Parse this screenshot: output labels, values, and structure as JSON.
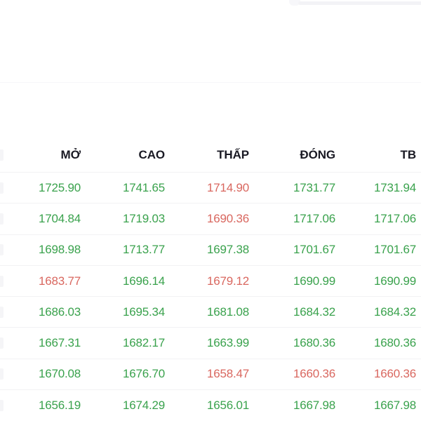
{
  "colors": {
    "up": "#3aa24d",
    "down": "#d9675f",
    "header_text": "#1a1a24",
    "row_separator": "#f2f2f4",
    "background": "#ffffff"
  },
  "table": {
    "headers": [
      "MỞ",
      "CAO",
      "THẤP",
      "ĐÓNG",
      "TB"
    ],
    "rows": [
      {
        "values": [
          "1725.90",
          "1741.65",
          "1714.90",
          "1731.77",
          "1731.94"
        ],
        "trend": [
          "up",
          "up",
          "down",
          "up",
          "up"
        ]
      },
      {
        "values": [
          "1704.84",
          "1719.03",
          "1690.36",
          "1717.06",
          "1717.06"
        ],
        "trend": [
          "up",
          "up",
          "down",
          "up",
          "up"
        ]
      },
      {
        "values": [
          "1698.98",
          "1713.77",
          "1697.38",
          "1701.67",
          "1701.67"
        ],
        "trend": [
          "up",
          "up",
          "up",
          "up",
          "up"
        ]
      },
      {
        "values": [
          "1683.77",
          "1696.14",
          "1679.12",
          "1690.99",
          "1690.99"
        ],
        "trend": [
          "down",
          "up",
          "down",
          "up",
          "up"
        ]
      },
      {
        "values": [
          "1686.03",
          "1695.34",
          "1681.08",
          "1684.32",
          "1684.32"
        ],
        "trend": [
          "up",
          "up",
          "up",
          "up",
          "up"
        ]
      },
      {
        "values": [
          "1667.31",
          "1682.17",
          "1663.99",
          "1680.36",
          "1680.36"
        ],
        "trend": [
          "up",
          "up",
          "up",
          "up",
          "up"
        ]
      },
      {
        "values": [
          "1670.08",
          "1676.70",
          "1658.47",
          "1660.36",
          "1660.36"
        ],
        "trend": [
          "up",
          "up",
          "down",
          "down",
          "down"
        ]
      },
      {
        "values": [
          "1656.19",
          "1674.29",
          "1656.01",
          "1667.98",
          "1667.98"
        ],
        "trend": [
          "up",
          "up",
          "up",
          "up",
          "up"
        ]
      }
    ]
  }
}
